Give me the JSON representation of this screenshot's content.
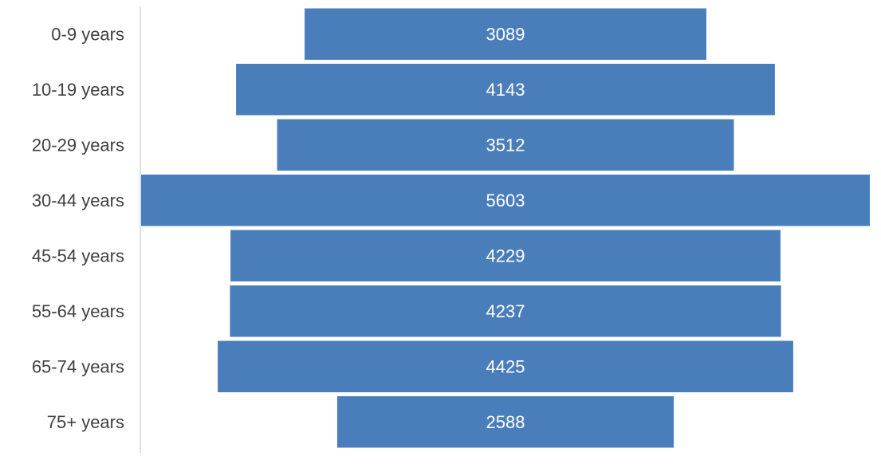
{
  "chart_data": {
    "type": "bar",
    "orientation": "horizontal",
    "layout": "funnel-centered",
    "categories": [
      "0-9 years",
      "10-19 years",
      "20-29 years",
      "30-44 years",
      "45-54 years",
      "55-64 years",
      "65-74 years",
      "75+ years"
    ],
    "values": [
      3089,
      4143,
      3512,
      5603,
      4229,
      4237,
      4425,
      2588
    ],
    "data_labels": true,
    "bar_color": "#4A7EBB",
    "label_color": "#ffffff",
    "category_label_color": "#404040",
    "axis_color": "#d9d9d9",
    "grid": false,
    "legend": "none"
  }
}
